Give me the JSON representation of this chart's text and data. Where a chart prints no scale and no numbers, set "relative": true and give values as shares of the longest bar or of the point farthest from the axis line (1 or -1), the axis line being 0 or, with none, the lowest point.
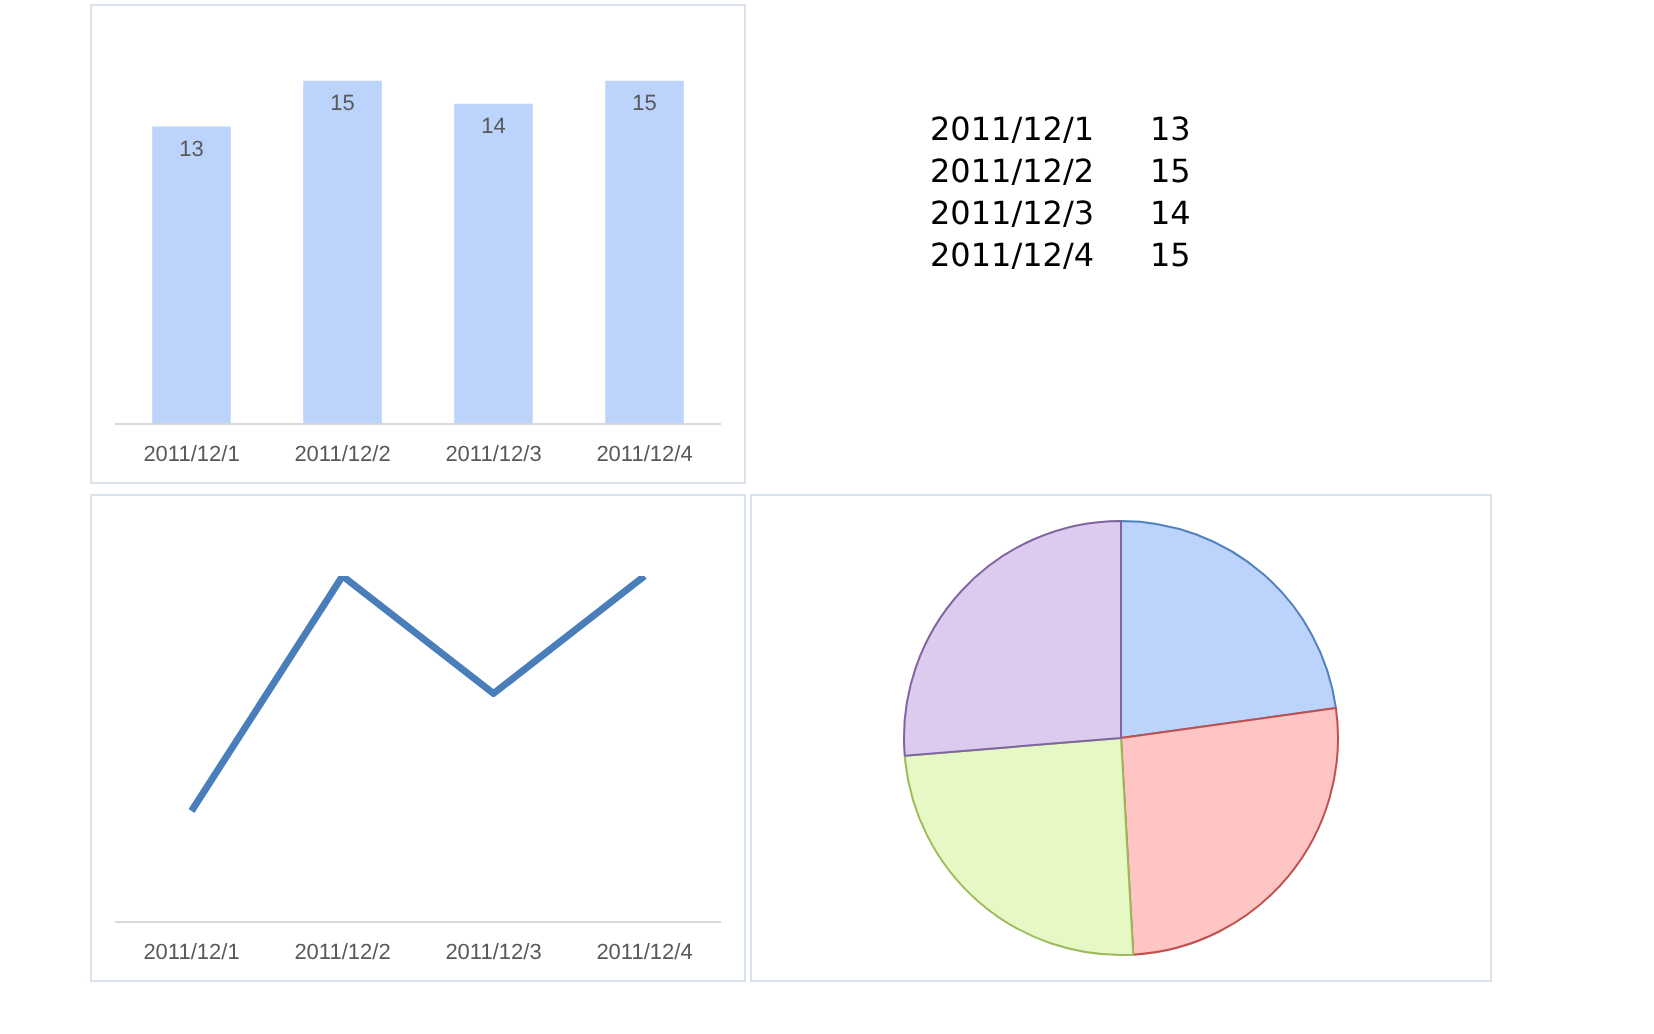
{
  "chart_data": [
    {
      "type": "bar",
      "categories": [
        "2011/12/1",
        "2011/12/2",
        "2011/12/3",
        "2011/12/4"
      ],
      "values": [
        13,
        15,
        14,
        15
      ],
      "color": "#bcd3fb",
      "data_labels": true,
      "grid": false,
      "legend": false
    },
    {
      "type": "other",
      "annotations": [
        "2011/12/1",
        "13",
        "2011/12/2",
        "15",
        "2011/12/3",
        "14",
        "2011/12/4",
        "15"
      ]
    },
    {
      "type": "line",
      "categories": [
        "2011/12/1",
        "2011/12/2",
        "2011/12/3",
        "2011/12/4"
      ],
      "values": [
        0.32,
        1,
        0.66,
        1
      ],
      "color": "#4a7ebb",
      "relative": true,
      "grid": false,
      "legend": false,
      "marker": "none"
    },
    {
      "type": "pie",
      "categories": [
        null,
        null,
        null,
        null
      ],
      "values": [
        22.8,
        26.3,
        24.6,
        26.3
      ],
      "colors": [
        "#bcd3fb",
        "#ffc4c4",
        "#e6f8c4",
        "#dccbee"
      ],
      "legend": false
    }
  ]
}
